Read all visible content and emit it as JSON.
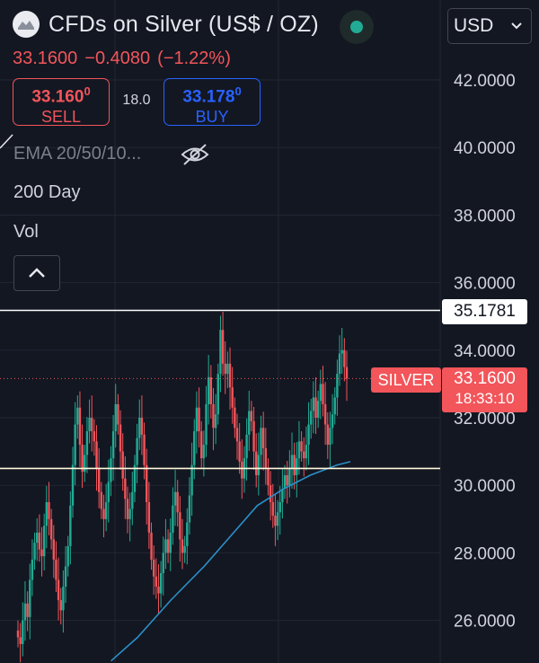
{
  "header": {
    "title": "CFDs on Silver (US$ / OZ)",
    "currency": "USD",
    "last_price": "33.1600",
    "change": "−0.4080",
    "change_pct": "(−1.22%)",
    "status_color": "#22ab94"
  },
  "trade": {
    "sell_price": "33.160",
    "sell_sup": "0",
    "sell_label": "SELL",
    "spread": "18.0",
    "buy_price": "33.178",
    "buy_sup": "0",
    "buy_label": "BUY"
  },
  "indicators": {
    "ema": "EMA 20/50/10...",
    "day200": "200 Day",
    "vol": "Vol"
  },
  "icons": [
    "logo-icon",
    "chevron-down-icon",
    "eye-off-icon",
    "chevron-up-icon"
  ],
  "colors": {
    "background": "#131722",
    "up": "#22ab94",
    "down": "#f2555a",
    "ma_line": "#2b8fc7"
  },
  "chart_data": {
    "type": "candlestick",
    "symbol": "SILVER",
    "ylim": [
      25.2,
      43.2
    ],
    "y_ticks": [
      "42.0000",
      "40.0000",
      "38.0000",
      "36.0000",
      "34.0000",
      "32.0000",
      "30.0000",
      "28.0000",
      "26.0000"
    ],
    "y_tick_values": [
      42,
      40,
      38,
      36,
      34,
      32,
      30,
      28,
      26
    ],
    "horizontal_lines": [
      {
        "value": 35.1781,
        "label": "35.1781",
        "color": "#ffffff"
      },
      {
        "value": 30.5,
        "color": "#fff8dc"
      }
    ],
    "current_price": {
      "value": 33.16,
      "label": "33.1600",
      "countdown": "18:33:10",
      "tag": "SILVER"
    },
    "closes": [
      25.5,
      25.3,
      26.0,
      26.5,
      26.1,
      27.2,
      27.8,
      28.3,
      28.6,
      28.1,
      27.9,
      28.8,
      29.5,
      29.0,
      28.4,
      27.8,
      27.2,
      26.6,
      26.3,
      27.0,
      27.6,
      28.2,
      29.4,
      30.6,
      31.8,
      32.3,
      31.2,
      30.4,
      30.9,
      31.6,
      32.0,
      31.6,
      31.3,
      30.5,
      29.8,
      29.3,
      29.0,
      29.5,
      30.1,
      30.8,
      31.6,
      32.4,
      31.8,
      31.0,
      30.2,
      29.6,
      29.0,
      29.3,
      29.8,
      30.6,
      31.4,
      32.0,
      31.5,
      30.6,
      29.5,
      28.6,
      27.8,
      27.3,
      27.0,
      26.8,
      27.4,
      28.0,
      28.4,
      28.0,
      28.6,
      29.4,
      29.8,
      29.2,
      28.4,
      28.0,
      28.2,
      28.9,
      29.7,
      30.6,
      31.6,
      32.3,
      31.6,
      30.8,
      31.2,
      32.4,
      33.2,
      32.4,
      31.7,
      32.1,
      33.3,
      34.6,
      33.6,
      33.3,
      33.6,
      32.9,
      32.3,
      31.7,
      31.3,
      30.7,
      30.2,
      30.8,
      31.5,
      32.2,
      31.9,
      31.0,
      30.3,
      30.9,
      31.7,
      31.1,
      30.5,
      30.0,
      29.5,
      29.1,
      28.8,
      29.2,
      29.5,
      29.9,
      30.3,
      30.0,
      30.5,
      30.9,
      30.3,
      30.8,
      31.3,
      31.0,
      30.8,
      31.2,
      31.8,
      32.2,
      32.6,
      32.0,
      32.5,
      33.0,
      32.4,
      31.8,
      31.2,
      31.7,
      32.1,
      32.6,
      33.3,
      33.9,
      34.0,
      33.5,
      33.16
    ],
    "ma": [
      {
        "t": 0.28,
        "v": 24.8
      },
      {
        "t": 0.36,
        "v": 25.5
      },
      {
        "t": 0.46,
        "v": 26.6
      },
      {
        "t": 0.56,
        "v": 27.6
      },
      {
        "t": 0.64,
        "v": 28.5
      },
      {
        "t": 0.72,
        "v": 29.4
      },
      {
        "t": 0.8,
        "v": 29.9
      },
      {
        "t": 0.88,
        "v": 30.3
      },
      {
        "t": 0.96,
        "v": 30.6
      },
      {
        "t": 1.0,
        "v": 30.7
      }
    ]
  }
}
